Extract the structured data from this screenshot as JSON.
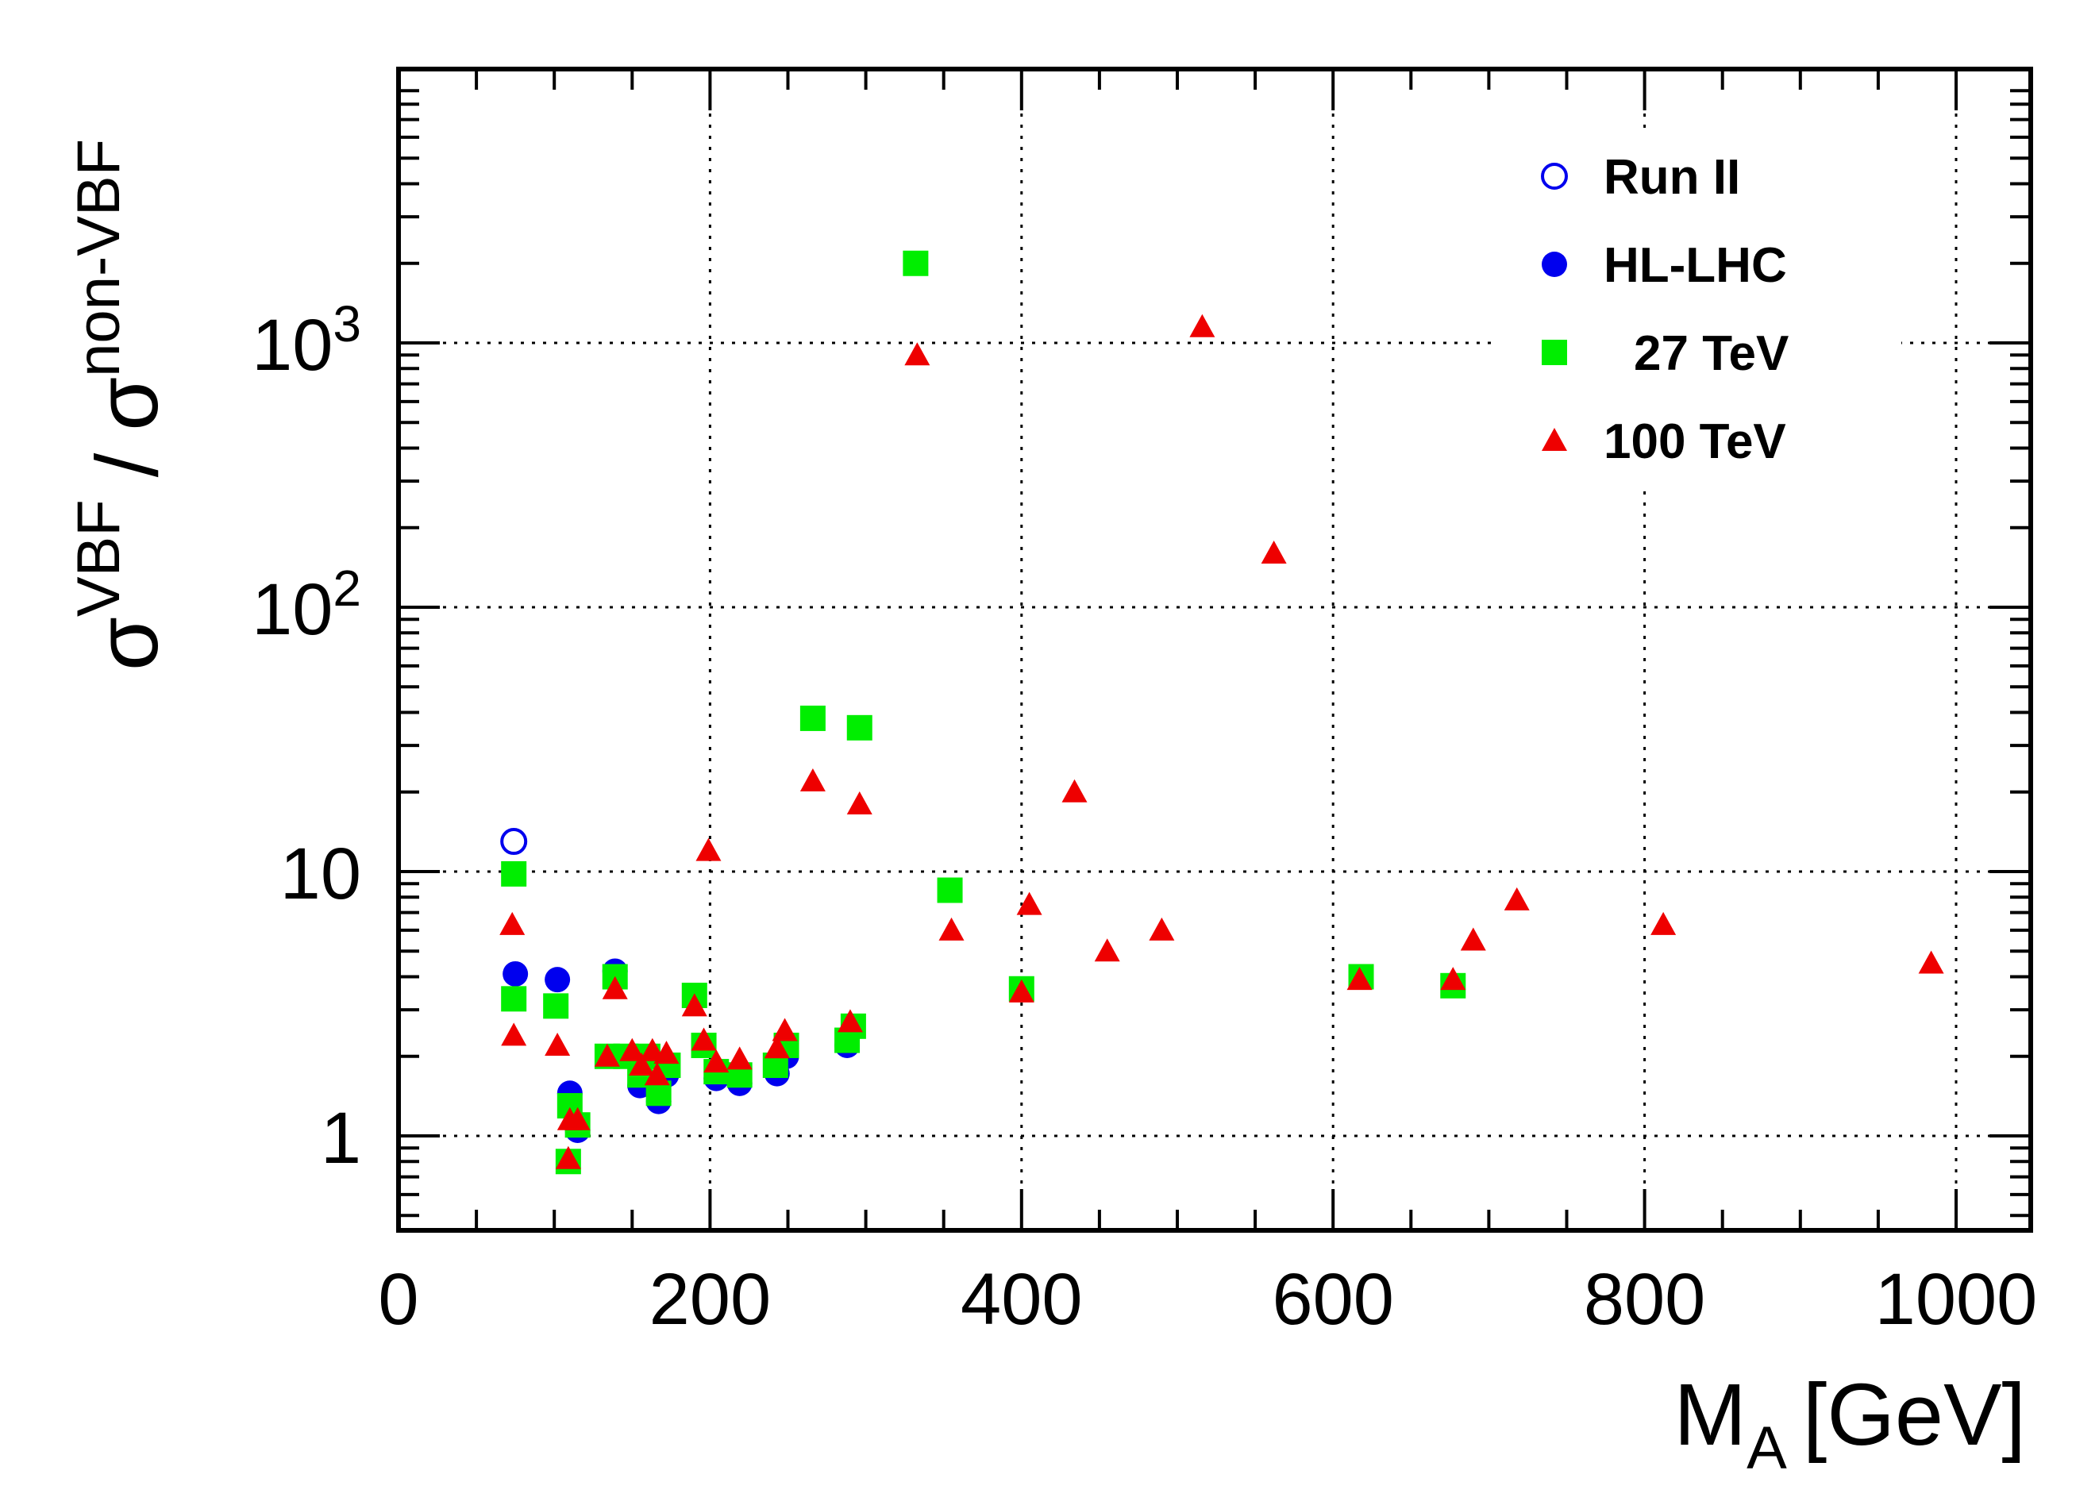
{
  "chart_data": {
    "type": "scatter",
    "xlabel": "M",
    "xlabel_sub": "A",
    "xlabel_unit": "[GeV]",
    "ylabel_num": "σ",
    "ylabel_num_sup": "VBF",
    "ylabel_sep": "/",
    "ylabel_den": "σ",
    "ylabel_den_sup": "non-VBF",
    "xlim": [
      0,
      1040
    ],
    "ylim": [
      0.5,
      10000
    ],
    "yscale": "log",
    "grid": true,
    "legend_position": "top-right",
    "x_ticks": [
      {
        "value": 0,
        "label": "0"
      },
      {
        "value": 200,
        "label": "200"
      },
      {
        "value": 400,
        "label": "400"
      },
      {
        "value": 600,
        "label": "600"
      },
      {
        "value": 800,
        "label": "800"
      },
      {
        "value": 1000,
        "label": "1000"
      }
    ],
    "y_ticks": [
      {
        "value": 1,
        "label": "1"
      },
      {
        "value": 10,
        "label": "10"
      },
      {
        "value": 100,
        "base": "10",
        "exp": "2"
      },
      {
        "value": 1000,
        "base": "10",
        "exp": "3"
      }
    ],
    "series": [
      {
        "name": "Run II",
        "marker": "circle-open",
        "color": "#0000ee",
        "points": [
          [
            74,
            13.0
          ]
        ]
      },
      {
        "name": "HL-LHC",
        "marker": "circle",
        "color": "#0000ee",
        "points": [
          [
            75,
            4.1
          ],
          [
            102,
            3.9
          ],
          [
            110,
            1.45
          ],
          [
            115,
            1.05
          ],
          [
            139,
            4.2
          ],
          [
            155,
            1.55
          ],
          [
            167,
            1.35
          ],
          [
            172,
            1.7
          ],
          [
            204,
            1.65
          ],
          [
            219,
            1.58
          ],
          [
            243,
            1.72
          ],
          [
            249,
            2.0
          ],
          [
            288,
            2.2
          ]
        ]
      },
      {
        "name": "27 TeV",
        "marker": "square",
        "color": "#00ee00",
        "points": [
          [
            74,
            9.8
          ],
          [
            74,
            3.3
          ],
          [
            101,
            3.1
          ],
          [
            110,
            1.3
          ],
          [
            109,
            0.8
          ],
          [
            115,
            1.1
          ],
          [
            134,
            2.0
          ],
          [
            139,
            4.0
          ],
          [
            146,
            2.0
          ],
          [
            155,
            1.7
          ],
          [
            160,
            2.0
          ],
          [
            167,
            1.45
          ],
          [
            173,
            1.85
          ],
          [
            190,
            3.4
          ],
          [
            196,
            2.2
          ],
          [
            204,
            1.75
          ],
          [
            219,
            1.7
          ],
          [
            242,
            1.85
          ],
          [
            249,
            2.2
          ],
          [
            266,
            38
          ],
          [
            288,
            2.3
          ],
          [
            292,
            2.6
          ],
          [
            296,
            35
          ],
          [
            332,
            2000
          ],
          [
            354,
            8.5
          ],
          [
            400,
            3.6
          ],
          [
            618,
            4.0
          ],
          [
            677,
            3.7
          ]
        ]
      },
      {
        "name": "100 TeV",
        "marker": "triangle",
        "color": "#ee0000",
        "points": [
          [
            73,
            6.3
          ],
          [
            74,
            2.4
          ],
          [
            102,
            2.2
          ],
          [
            110,
            1.15
          ],
          [
            109,
            0.82
          ],
          [
            115,
            1.15
          ],
          [
            134,
            2.0
          ],
          [
            139,
            3.6
          ],
          [
            150,
            2.1
          ],
          [
            156,
            1.85
          ],
          [
            163,
            2.1
          ],
          [
            166,
            1.7
          ],
          [
            172,
            2.05
          ],
          [
            190,
            3.1
          ],
          [
            196,
            2.3
          ],
          [
            199,
            12
          ],
          [
            204,
            1.9
          ],
          [
            219,
            1.95
          ],
          [
            243,
            2.15
          ],
          [
            248,
            2.5
          ],
          [
            266,
            22
          ],
          [
            290,
            2.7
          ],
          [
            296,
            18
          ],
          [
            333,
            900
          ],
          [
            355,
            6.0
          ],
          [
            400,
            3.5
          ],
          [
            405,
            7.5
          ],
          [
            434,
            20
          ],
          [
            455,
            5.0
          ],
          [
            490,
            6.0
          ],
          [
            516,
            1150
          ],
          [
            562,
            160
          ],
          [
            617,
            3.9
          ],
          [
            677,
            3.9
          ],
          [
            690,
            5.5
          ],
          [
            718,
            7.8
          ],
          [
            812,
            6.3
          ],
          [
            984,
            4.5
          ]
        ]
      }
    ]
  }
}
